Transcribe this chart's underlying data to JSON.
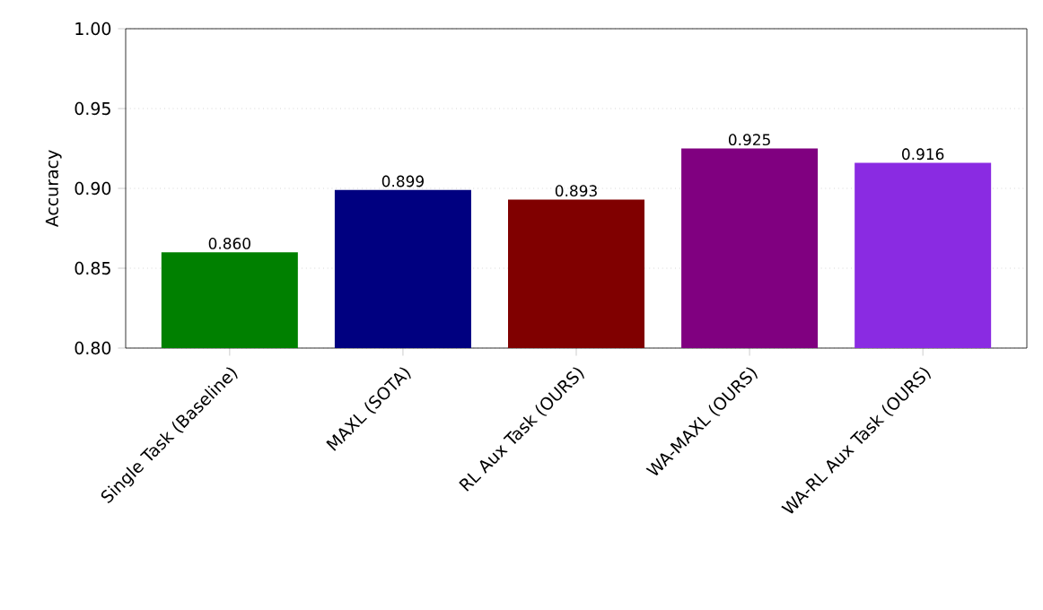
{
  "chart_data": {
    "type": "bar",
    "ylabel": "Accuracy",
    "categories": [
      "Single Task (Baseline)",
      "MAXL (SOTA)",
      "RL Aux Task (OURS)",
      "WA-MAXL (OURS)",
      "WA-RL Aux Task (OURS)"
    ],
    "values": [
      0.86,
      0.899,
      0.893,
      0.925,
      0.916
    ],
    "colors": [
      "#008000",
      "#000080",
      "#800000",
      "#800080",
      "#8a2be2"
    ],
    "ylim": [
      0.8,
      1.0
    ],
    "yticks": [
      {
        "value": 0.8,
        "label": "0.80"
      },
      {
        "value": 0.85,
        "label": "0.85"
      },
      {
        "value": 0.9,
        "label": "0.90"
      },
      {
        "value": 0.95,
        "label": "0.95"
      },
      {
        "value": 1.0,
        "label": "1.00"
      }
    ],
    "grid": "y",
    "data_labels": true,
    "value_labels": [
      "0.860",
      "0.899",
      "0.893",
      "0.925",
      "0.916"
    ]
  }
}
